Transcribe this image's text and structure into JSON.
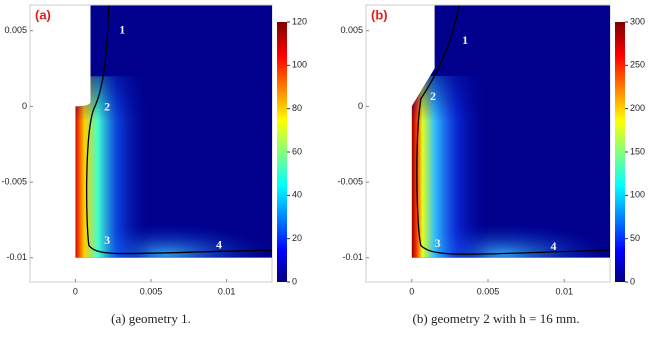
{
  "chart_data": [
    {
      "type": "heatmap",
      "label": "(a)",
      "caption": "(a) geometry 1.",
      "geometry": "straight",
      "xlim": [
        -0.003,
        0.013
      ],
      "xticks": [
        0,
        0.005,
        0.01
      ],
      "ylim": [
        -0.0116,
        0.0067
      ],
      "yticks": [
        0.005,
        0,
        -0.005,
        -0.01
      ],
      "clim": [
        0,
        120
      ],
      "cticks": [
        0,
        20,
        40,
        60,
        80,
        100,
        120
      ],
      "annotations": [
        "1",
        "2",
        "3",
        "4"
      ]
    },
    {
      "type": "heatmap",
      "label": "(b)",
      "caption": "(b) geometry 2 with h = 16 mm.",
      "geometry": "chamfer",
      "xlim": [
        -0.003,
        0.013
      ],
      "xticks": [
        0,
        0.005,
        0.01
      ],
      "ylim": [
        -0.0116,
        0.0067
      ],
      "yticks": [
        0.005,
        0,
        -0.005,
        -0.01
      ],
      "clim": [
        0,
        300
      ],
      "cticks": [
        0,
        50,
        100,
        150,
        200,
        250,
        300
      ],
      "annotations": [
        "1",
        "2",
        "3",
        "4"
      ]
    }
  ]
}
